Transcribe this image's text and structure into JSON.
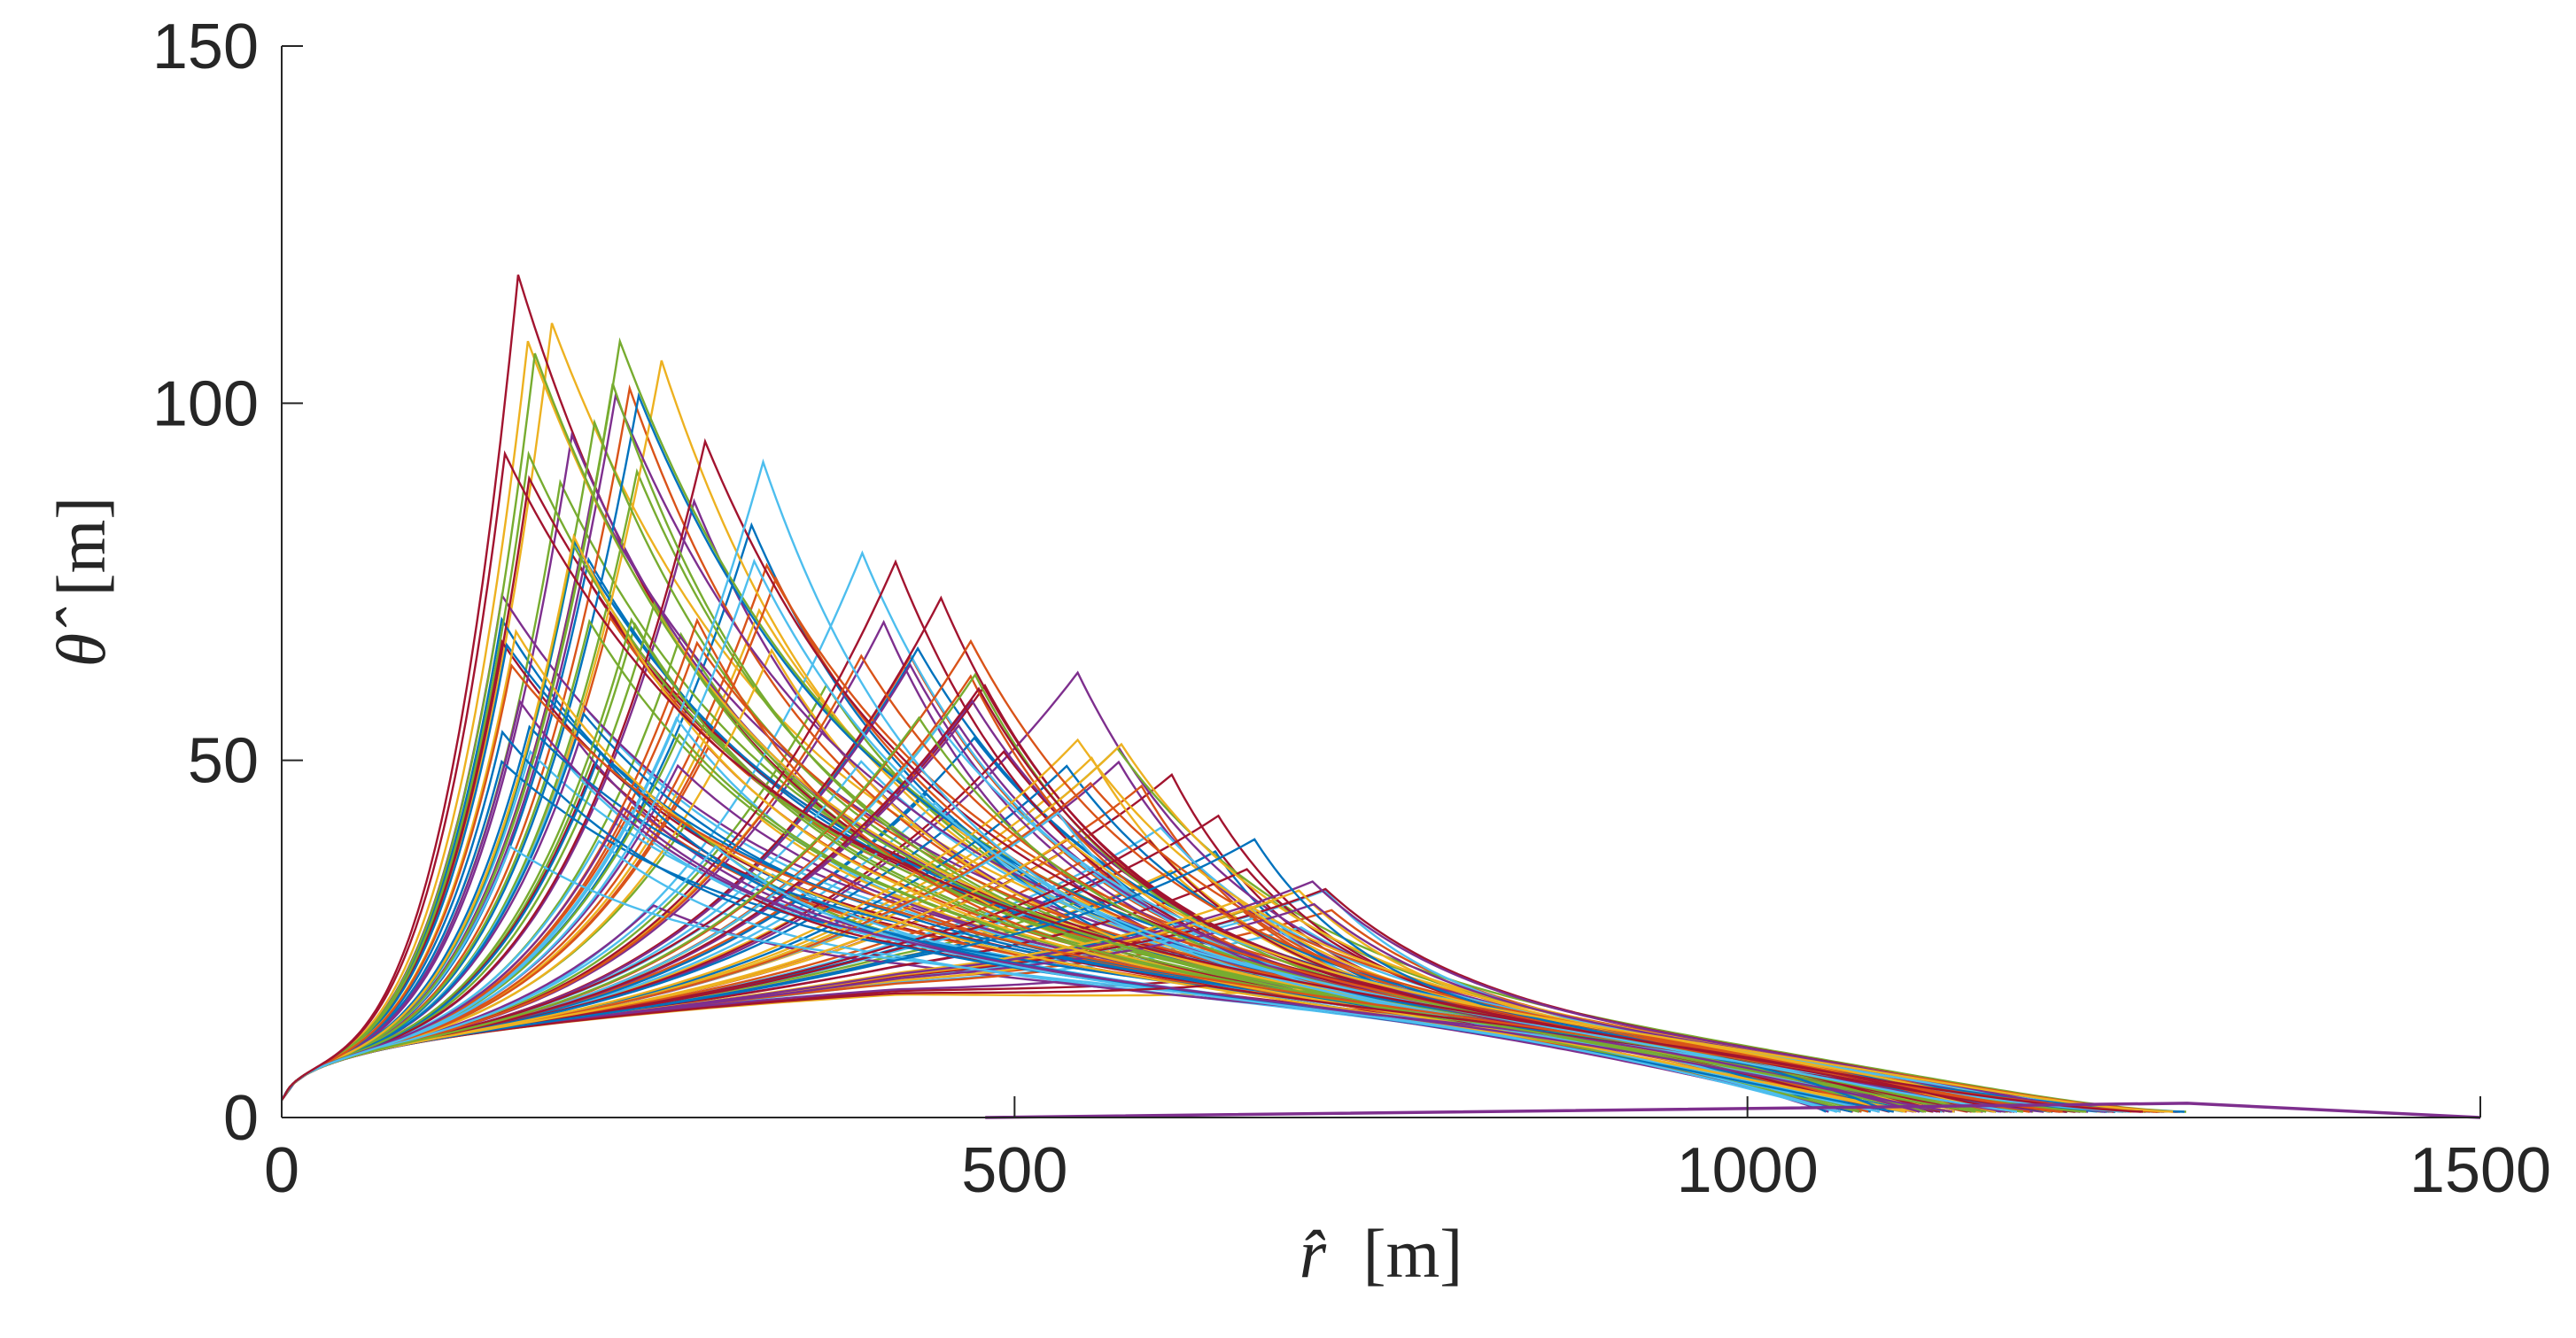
{
  "chart_data": {
    "type": "line",
    "title": "",
    "xlabel": {
      "symbol": "r̂",
      "unit": "[m]"
    },
    "ylabel": {
      "symbol": "θ̂",
      "unit": "[m]"
    },
    "xlim": [
      0,
      1500
    ],
    "ylim": [
      0,
      150
    ],
    "xticks": [
      0,
      500,
      1000,
      1500
    ],
    "yticks": [
      0,
      50,
      100,
      150
    ],
    "xtick_labels": [
      "0",
      "500",
      "1000",
      "1500"
    ],
    "ytick_labels": [
      "0",
      "50",
      "100",
      "150"
    ],
    "grid": false,
    "legend": "none",
    "series_colors": [
      "#0072BD",
      "#D95319",
      "#EDB120",
      "#7E2F8E",
      "#77AC30",
      "#4DBEEE",
      "#A2142F"
    ],
    "trajectory_count": 140,
    "envelope": {
      "peak_r_range": [
        150,
        720
      ],
      "peak_theta_max": 124,
      "end_r_range": [
        1050,
        1300
      ],
      "lower_plateau_theta": 17
    },
    "baseline_series": {
      "name": "",
      "color": "#7E2F8E",
      "x": [
        480,
        1300,
        1500
      ],
      "y": [
        0,
        2,
        0
      ]
    }
  }
}
